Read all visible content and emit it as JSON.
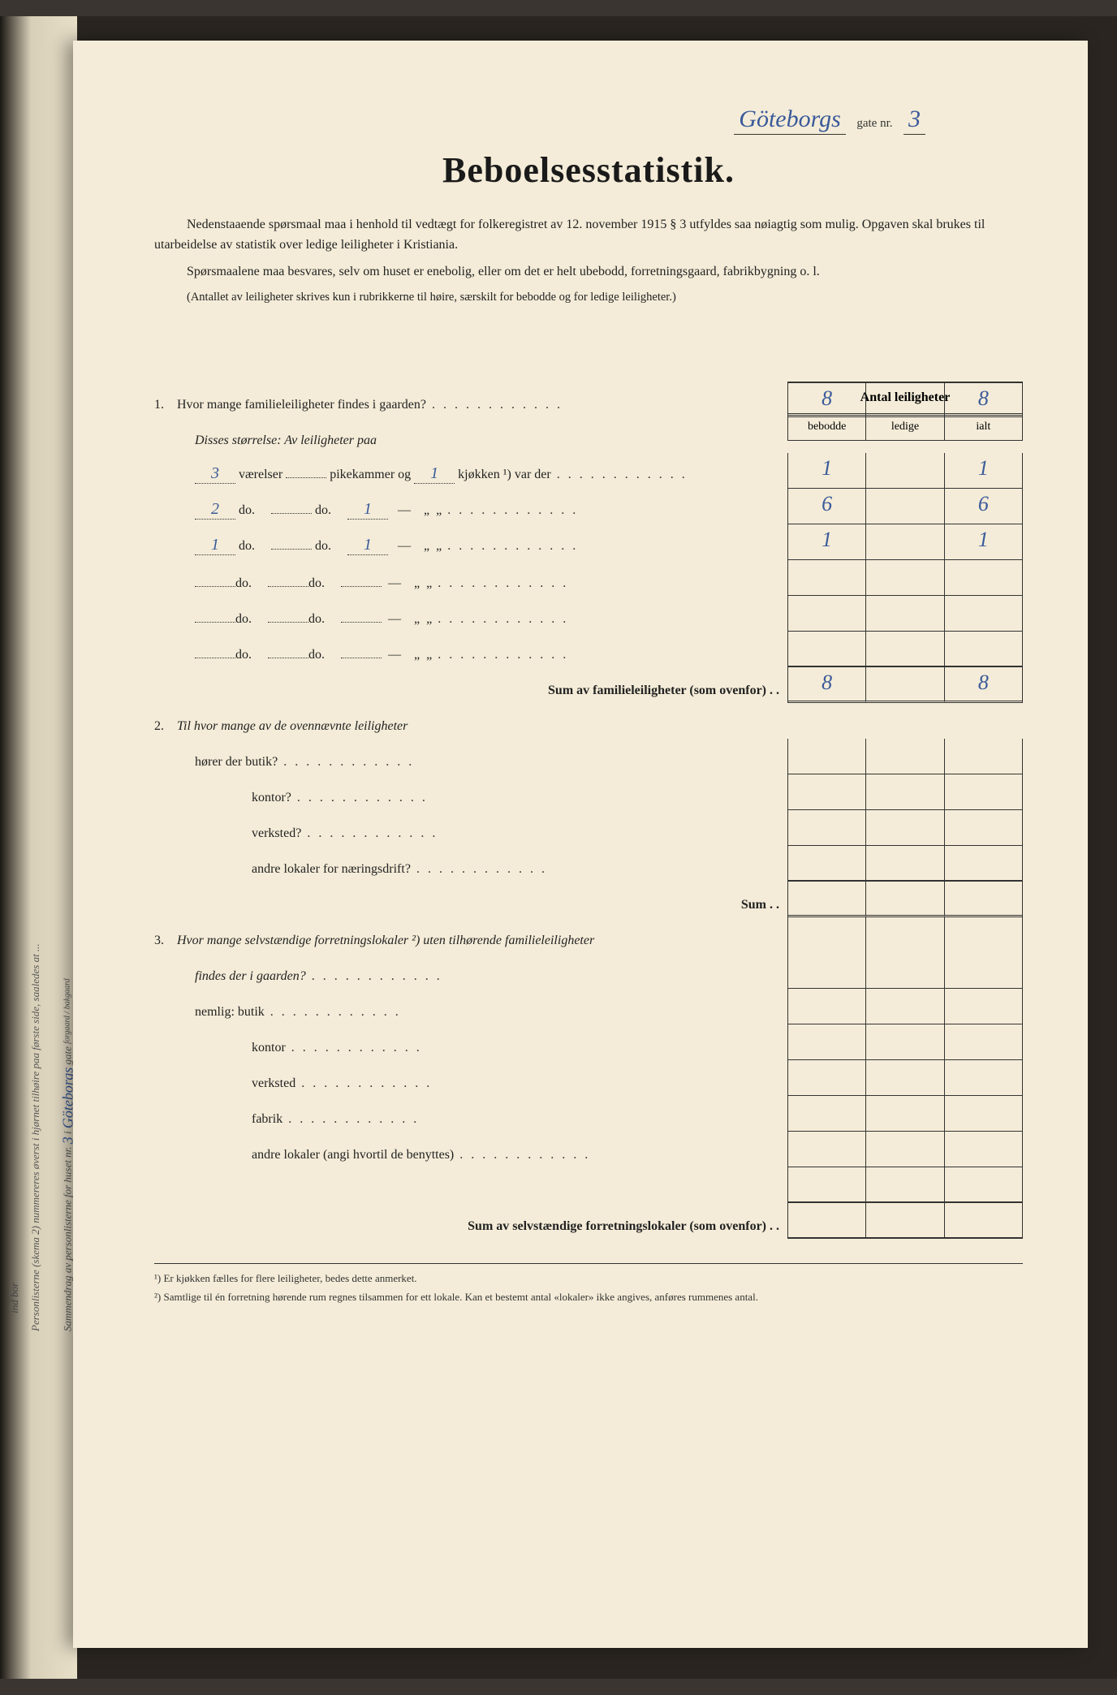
{
  "page": {
    "background_color": "#f4ecd8",
    "ink_color": "#222222",
    "handwriting_color": "#3a5a9a"
  },
  "header": {
    "street_hw": "Göteborgs",
    "gate_label": "gate nr.",
    "gate_nr_hw": "3"
  },
  "title": "Beboelsesstatistik.",
  "intro": {
    "p1": "Nedenstaaende spørsmaal maa i henhold til vedtægt for folkeregistret av 12. november 1915 § 3 utfyldes saa nøiagtig som mulig. Opgaven skal brukes til utarbeidelse av statistik over ledige leiligheter i Kristiania.",
    "p2": "Spørsmaalene maa besvares, selv om huset er enebolig, eller om det er helt ubebodd, forretningsgaard, fabrikbygning o. l.",
    "p3": "(Antallet av leiligheter skrives kun i rubrikkerne til høire, særskilt for bebodde og for ledige leiligheter.)"
  },
  "columns": {
    "group": "Antal leiligheter",
    "c1": "bebodde",
    "c2": "ledige",
    "c3": "ialt"
  },
  "q1": {
    "label": "Hvor mange familieleiligheter findes i gaarden?",
    "sub": "Disses størrelse: Av leiligheter paa",
    "line_tpl_a": "værelser",
    "line_tpl_b": "pikekammer og",
    "line_tpl_c": "kjøkken ¹) var der",
    "do": "do.",
    "rows": [
      {
        "vaer": "3",
        "pike": "",
        "kjok": "1",
        "beb": "1",
        "led": "",
        "ialt": "1"
      },
      {
        "vaer": "2",
        "pike": "",
        "kjok": "1",
        "beb": "6",
        "led": "",
        "ialt": "6"
      },
      {
        "vaer": "1",
        "pike": "",
        "kjok": "1",
        "beb": "1",
        "led": "",
        "ialt": "1"
      },
      {
        "vaer": "",
        "pike": "",
        "kjok": "",
        "beb": "",
        "led": "",
        "ialt": ""
      },
      {
        "vaer": "",
        "pike": "",
        "kjok": "",
        "beb": "",
        "led": "",
        "ialt": ""
      },
      {
        "vaer": "",
        "pike": "",
        "kjok": "",
        "beb": "",
        "led": "",
        "ialt": ""
      }
    ],
    "total": {
      "beb": "8",
      "led": "",
      "ialt": "8"
    },
    "sum_label": "Sum av familieleiligheter (som ovenfor) . ."
  },
  "q1_top": {
    "beb": "8",
    "led": "",
    "ialt": "8"
  },
  "q2": {
    "label": "Til hvor mange av de ovennævnte leiligheter",
    "lines": [
      "hører der butik?",
      "kontor?",
      "verksted?",
      "andre lokaler for næringsdrift?"
    ],
    "sum": "Sum . ."
  },
  "q3": {
    "label_a": "Hvor mange selvstændige forretningslokaler ²) uten tilhørende familieleiligheter",
    "label_b": "findes der i gaarden?",
    "nemlig": "nemlig:",
    "lines": [
      "butik",
      "kontor",
      "verksted",
      "fabrik",
      "andre lokaler (angi hvortil de benyttes)"
    ],
    "sum_label": "Sum av selvstændige forretningslokaler (som ovenfor) . ."
  },
  "footnotes": {
    "f1": "¹) Er kjøkken fælles for flere leiligheter, bedes dette anmerket.",
    "f2": "²) Samtlige til én forretning hørende rum regnes tilsammen for ett lokale. Kan et bestemt antal «lokaler» ikke angives, anføres rummenes antal."
  },
  "side": {
    "text": "Sammendrag av personlisterne for huset nr.",
    "hw_nr": "3",
    "mid": "i",
    "hw_street": "Göteborgs",
    "gate": "gate",
    "forgaard": "forgaard / bakgaard",
    "note": "Personlisterne (skema 2) nummereres øverst i hjørnet tilhøire paa første side, saaledes at ...",
    "ind_bor": "ind bor"
  }
}
